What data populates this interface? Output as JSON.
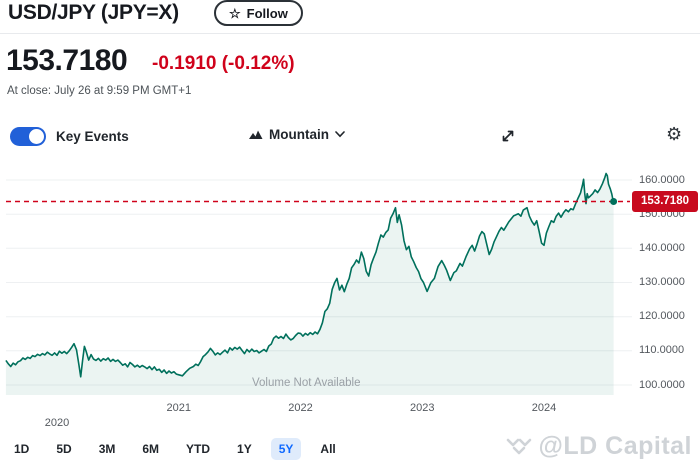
{
  "header": {
    "title": "USD/JPY (JPY=X)",
    "follow_label": "Follow",
    "star_icon": "☆"
  },
  "quote": {
    "price": "153.7180",
    "change": "-0.1910 (-0.12%)",
    "at_close": "At close: July 26 at 9:59 PM GMT+1"
  },
  "toolbar": {
    "key_events_label": "Key Events",
    "key_events_on": true,
    "chart_type_label": "Mountain",
    "gear_icon": "⚙"
  },
  "colors": {
    "ink": "#21262c",
    "accent_blue": "#0f69ff",
    "toggle_blue": "#2160d8",
    "negative_red": "#d0021b",
    "badge_red": "#c80a1e",
    "line_green": "#00705c",
    "fill_green": "rgba(0,113,93,0.08)",
    "grid": "#eef0f2",
    "axis_text": "#53585e"
  },
  "chart_data": {
    "type": "area",
    "title": "USD/JPY 5Y mountain chart",
    "volume_note": "Volume Not Available",
    "current_price": 153.718,
    "current_price_label": "153.7180",
    "x_ticks": [
      {
        "label": "2020",
        "t": 2020,
        "lowered": true
      },
      {
        "label": "2021",
        "t": 2021,
        "lowered": false
      },
      {
        "label": "2022",
        "t": 2022,
        "lowered": false
      },
      {
        "label": "2023",
        "t": 2023,
        "lowered": false
      },
      {
        "label": "2024",
        "t": 2024,
        "lowered": false
      }
    ],
    "y_ticks": [
      {
        "label": "100.0000",
        "v": 100
      },
      {
        "label": "110.0000",
        "v": 110
      },
      {
        "label": "120.0000",
        "v": 120
      },
      {
        "label": "130.0000",
        "v": 130
      },
      {
        "label": "140.0000",
        "v": 140
      },
      {
        "label": "150.0000",
        "v": 150
      },
      {
        "label": "160.0000",
        "v": 160
      }
    ],
    "x_range": [
      2019.58,
      2024.62
    ],
    "ylim": [
      97.5,
      163
    ],
    "series": [
      {
        "name": "USD/JPY",
        "points": [
          [
            2019.58,
            107.2
          ],
          [
            2019.6,
            106.2
          ],
          [
            2019.62,
            105.4
          ],
          [
            2019.64,
            106.4
          ],
          [
            2019.66,
            105.9
          ],
          [
            2019.68,
            106.8
          ],
          [
            2019.7,
            107.1
          ],
          [
            2019.72,
            107.9
          ],
          [
            2019.74,
            107.5
          ],
          [
            2019.76,
            108.1
          ],
          [
            2019.78,
            107.8
          ],
          [
            2019.8,
            108.6
          ],
          [
            2019.82,
            108.3
          ],
          [
            2019.84,
            109.0
          ],
          [
            2019.86,
            108.6
          ],
          [
            2019.88,
            109.2
          ],
          [
            2019.9,
            108.8
          ],
          [
            2019.92,
            109.6
          ],
          [
            2019.94,
            109.1
          ],
          [
            2019.96,
            108.7
          ],
          [
            2019.98,
            109.4
          ],
          [
            2020.0,
            108.7
          ],
          [
            2020.02,
            109.9
          ],
          [
            2020.04,
            109.3
          ],
          [
            2020.06,
            109.8
          ],
          [
            2020.08,
            109.2
          ],
          [
            2020.1,
            110.0
          ],
          [
            2020.12,
            111.0
          ],
          [
            2020.14,
            112.1
          ],
          [
            2020.16,
            110.3
          ],
          [
            2020.18,
            105.9
          ],
          [
            2020.195,
            102.4
          ],
          [
            2020.21,
            107.2
          ],
          [
            2020.225,
            111.3
          ],
          [
            2020.24,
            109.8
          ],
          [
            2020.26,
            107.3
          ],
          [
            2020.28,
            108.9
          ],
          [
            2020.3,
            107.6
          ],
          [
            2020.32,
            107.2
          ],
          [
            2020.34,
            107.8
          ],
          [
            2020.36,
            107.0
          ],
          [
            2020.38,
            107.7
          ],
          [
            2020.4,
            107.3
          ],
          [
            2020.42,
            107.9
          ],
          [
            2020.44,
            106.9
          ],
          [
            2020.46,
            107.5
          ],
          [
            2020.48,
            106.9
          ],
          [
            2020.5,
            107.3
          ],
          [
            2020.52,
            106.6
          ],
          [
            2020.54,
            105.8
          ],
          [
            2020.56,
            106.2
          ],
          [
            2020.58,
            105.3
          ],
          [
            2020.6,
            106.6
          ],
          [
            2020.62,
            106.0
          ],
          [
            2020.64,
            105.3
          ],
          [
            2020.66,
            105.8
          ],
          [
            2020.68,
            105.2
          ],
          [
            2020.7,
            105.7
          ],
          [
            2020.72,
            105.3
          ],
          [
            2020.74,
            104.8
          ],
          [
            2020.76,
            105.4
          ],
          [
            2020.78,
            104.5
          ],
          [
            2020.8,
            105.3
          ],
          [
            2020.82,
            104.3
          ],
          [
            2020.84,
            104.6
          ],
          [
            2020.86,
            103.7
          ],
          [
            2020.88,
            104.4
          ],
          [
            2020.9,
            103.4
          ],
          [
            2020.92,
            104.1
          ],
          [
            2020.94,
            103.5
          ],
          [
            2020.96,
            103.9
          ],
          [
            2020.98,
            103.2
          ],
          [
            2021.0,
            103.0
          ],
          [
            2021.03,
            102.7
          ],
          [
            2021.06,
            103.9
          ],
          [
            2021.09,
            104.9
          ],
          [
            2021.12,
            105.4
          ],
          [
            2021.14,
            106.1
          ],
          [
            2021.16,
            105.7
          ],
          [
            2021.18,
            106.9
          ],
          [
            2021.2,
            108.3
          ],
          [
            2021.22,
            108.9
          ],
          [
            2021.24,
            109.7
          ],
          [
            2021.26,
            110.7
          ],
          [
            2021.28,
            109.9
          ],
          [
            2021.3,
            108.8
          ],
          [
            2021.32,
            109.4
          ],
          [
            2021.34,
            108.9
          ],
          [
            2021.36,
            109.6
          ],
          [
            2021.38,
            110.2
          ],
          [
            2021.4,
            109.4
          ],
          [
            2021.42,
            110.9
          ],
          [
            2021.44,
            110.2
          ],
          [
            2021.46,
            111.0
          ],
          [
            2021.48,
            110.5
          ],
          [
            2021.5,
            111.1
          ],
          [
            2021.52,
            110.1
          ],
          [
            2021.54,
            109.2
          ],
          [
            2021.56,
            110.4
          ],
          [
            2021.58,
            109.7
          ],
          [
            2021.6,
            110.5
          ],
          [
            2021.62,
            109.8
          ],
          [
            2021.64,
            110.1
          ],
          [
            2021.66,
            109.4
          ],
          [
            2021.68,
            109.9
          ],
          [
            2021.7,
            110.4
          ],
          [
            2021.72,
            109.8
          ],
          [
            2021.74,
            111.4
          ],
          [
            2021.76,
            112.0
          ],
          [
            2021.78,
            113.7
          ],
          [
            2021.8,
            114.3
          ],
          [
            2021.82,
            113.7
          ],
          [
            2021.84,
            114.2
          ],
          [
            2021.86,
            113.6
          ],
          [
            2021.88,
            114.9
          ],
          [
            2021.9,
            113.9
          ],
          [
            2021.92,
            113.2
          ],
          [
            2021.94,
            113.6
          ],
          [
            2021.96,
            114.5
          ],
          [
            2021.98,
            115.2
          ],
          [
            2022.0,
            115.1
          ],
          [
            2022.02,
            114.3
          ],
          [
            2022.04,
            115.1
          ],
          [
            2022.06,
            114.6
          ],
          [
            2022.08,
            115.3
          ],
          [
            2022.1,
            114.8
          ],
          [
            2022.12,
            115.5
          ],
          [
            2022.14,
            115.0
          ],
          [
            2022.16,
            116.3
          ],
          [
            2022.18,
            118.2
          ],
          [
            2022.2,
            121.5
          ],
          [
            2022.22,
            122.3
          ],
          [
            2022.24,
            123.9
          ],
          [
            2022.26,
            128.0
          ],
          [
            2022.28,
            129.9
          ],
          [
            2022.3,
            131.2
          ],
          [
            2022.32,
            127.8
          ],
          [
            2022.34,
            129.2
          ],
          [
            2022.36,
            127.3
          ],
          [
            2022.38,
            129.5
          ],
          [
            2022.4,
            131.2
          ],
          [
            2022.42,
            134.3
          ],
          [
            2022.44,
            135.3
          ],
          [
            2022.46,
            136.6
          ],
          [
            2022.48,
            135.7
          ],
          [
            2022.5,
            138.9
          ],
          [
            2022.52,
            137.0
          ],
          [
            2022.54,
            133.3
          ],
          [
            2022.56,
            131.9
          ],
          [
            2022.58,
            135.2
          ],
          [
            2022.6,
            137.1
          ],
          [
            2022.62,
            138.9
          ],
          [
            2022.64,
            141.5
          ],
          [
            2022.66,
            143.9
          ],
          [
            2022.68,
            143.3
          ],
          [
            2022.7,
            144.6
          ],
          [
            2022.72,
            145.4
          ],
          [
            2022.74,
            148.8
          ],
          [
            2022.76,
            150.1
          ],
          [
            2022.78,
            151.9
          ],
          [
            2022.795,
            147.6
          ],
          [
            2022.81,
            149.8
          ],
          [
            2022.83,
            146.8
          ],
          [
            2022.85,
            142.2
          ],
          [
            2022.87,
            139.6
          ],
          [
            2022.89,
            140.6
          ],
          [
            2022.91,
            137.5
          ],
          [
            2022.93,
            136.1
          ],
          [
            2022.95,
            134.4
          ],
          [
            2022.97,
            133.2
          ],
          [
            2022.99,
            131.1
          ],
          [
            2023.01,
            130.0
          ],
          [
            2023.04,
            127.4
          ],
          [
            2023.07,
            129.9
          ],
          [
            2023.1,
            131.2
          ],
          [
            2023.13,
            134.7
          ],
          [
            2023.16,
            136.4
          ],
          [
            2023.18,
            135.1
          ],
          [
            2023.2,
            133.6
          ],
          [
            2023.23,
            130.6
          ],
          [
            2023.26,
            132.9
          ],
          [
            2023.28,
            133.4
          ],
          [
            2023.31,
            135.6
          ],
          [
            2023.33,
            134.8
          ],
          [
            2023.36,
            137.6
          ],
          [
            2023.39,
            139.9
          ],
          [
            2023.41,
            140.9
          ],
          [
            2023.43,
            139.2
          ],
          [
            2023.45,
            141.2
          ],
          [
            2023.47,
            143.6
          ],
          [
            2023.49,
            144.9
          ],
          [
            2023.51,
            144.2
          ],
          [
            2023.53,
            141.1
          ],
          [
            2023.55,
            138.2
          ],
          [
            2023.57,
            139.7
          ],
          [
            2023.59,
            141.9
          ],
          [
            2023.61,
            143.4
          ],
          [
            2023.63,
            145.0
          ],
          [
            2023.65,
            146.1
          ],
          [
            2023.67,
            145.3
          ],
          [
            2023.69,
            146.5
          ],
          [
            2023.71,
            147.7
          ],
          [
            2023.73,
            148.6
          ],
          [
            2023.75,
            149.5
          ],
          [
            2023.77,
            149.8
          ],
          [
            2023.79,
            150.1
          ],
          [
            2023.81,
            149.4
          ],
          [
            2023.83,
            151.2
          ],
          [
            2023.86,
            151.9
          ],
          [
            2023.88,
            149.4
          ],
          [
            2023.9,
            147.9
          ],
          [
            2023.92,
            146.8
          ],
          [
            2023.94,
            148.1
          ],
          [
            2023.96,
            145.0
          ],
          [
            2023.98,
            141.5
          ],
          [
            2024.0,
            140.9
          ],
          [
            2024.02,
            144.5
          ],
          [
            2024.04,
            146.4
          ],
          [
            2024.06,
            148.1
          ],
          [
            2024.08,
            147.6
          ],
          [
            2024.1,
            149.4
          ],
          [
            2024.12,
            150.3
          ],
          [
            2024.14,
            149.1
          ],
          [
            2024.16,
            150.4
          ],
          [
            2024.18,
            151.3
          ],
          [
            2024.2,
            150.7
          ],
          [
            2024.22,
            151.6
          ],
          [
            2024.24,
            151.3
          ],
          [
            2024.26,
            153.1
          ],
          [
            2024.28,
            154.7
          ],
          [
            2024.3,
            156.2
          ],
          [
            2024.315,
            158.4
          ],
          [
            2024.325,
            160.2
          ],
          [
            2024.335,
            155.9
          ],
          [
            2024.345,
            153.1
          ],
          [
            2024.355,
            156.0
          ],
          [
            2024.365,
            154.8
          ],
          [
            2024.38,
            155.3
          ],
          [
            2024.4,
            156.0
          ],
          [
            2024.42,
            157.1
          ],
          [
            2024.44,
            156.3
          ],
          [
            2024.46,
            157.4
          ],
          [
            2024.48,
            158.9
          ],
          [
            2024.5,
            160.8
          ],
          [
            2024.51,
            161.9
          ],
          [
            2024.52,
            161.3
          ],
          [
            2024.53,
            158.8
          ],
          [
            2024.545,
            157.3
          ],
          [
            2024.557,
            155.9
          ],
          [
            2024.565,
            154.4
          ],
          [
            2024.572,
            153.718
          ]
        ]
      }
    ]
  },
  "range_tabs": {
    "items": [
      {
        "label": "1D",
        "active": false
      },
      {
        "label": "5D",
        "active": false
      },
      {
        "label": "3M",
        "active": false
      },
      {
        "label": "6M",
        "active": false
      },
      {
        "label": "YTD",
        "active": false
      },
      {
        "label": "1Y",
        "active": false
      },
      {
        "label": "5Y",
        "active": true
      },
      {
        "label": "All",
        "active": false
      }
    ]
  },
  "watermark": {
    "text": "@LD Capital"
  }
}
